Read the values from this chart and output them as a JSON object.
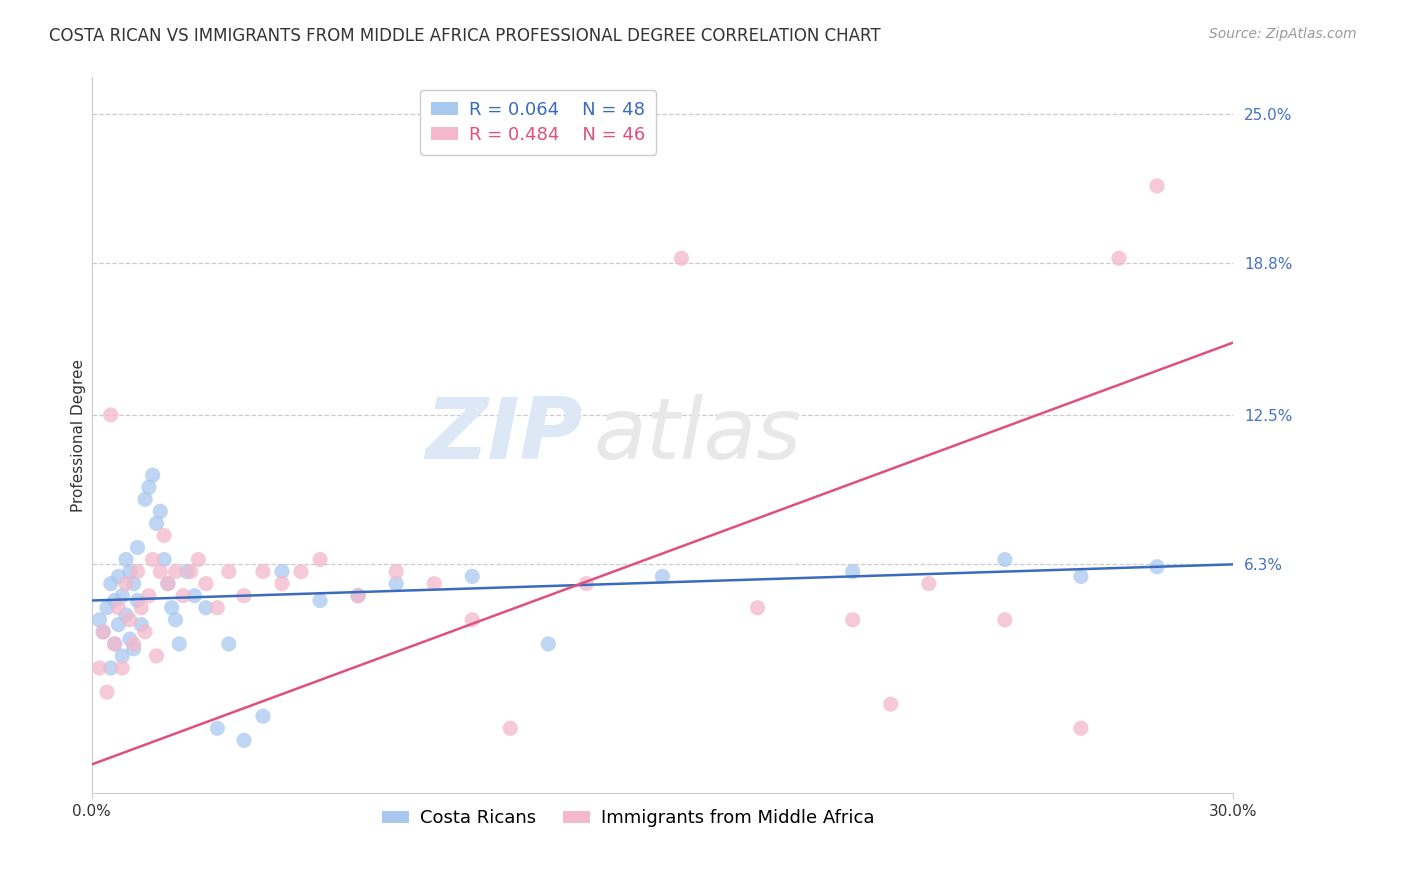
{
  "title": "COSTA RICAN VS IMMIGRANTS FROM MIDDLE AFRICA PROFESSIONAL DEGREE CORRELATION CHART",
  "source": "Source: ZipAtlas.com",
  "ylabel": "Professional Degree",
  "xlim": [
    0.0,
    0.3
  ],
  "ylim": [
    -0.032,
    0.265
  ],
  "ytick_labels": [
    "25.0%",
    "18.8%",
    "12.5%",
    "6.3%"
  ],
  "ytick_values": [
    0.25,
    0.188,
    0.125,
    0.063
  ],
  "xtick_labels": [
    "0.0%",
    "30.0%"
  ],
  "xtick_values": [
    0.0,
    0.3
  ],
  "background_color": "#ffffff",
  "watermark_line1": "ZIP",
  "watermark_line2": "atlas",
  "series": [
    {
      "name": "Costa Ricans",
      "R": 0.064,
      "N": 48,
      "color": "#a8c8f0",
      "trendline_color": "#3a6bbf",
      "x": [
        0.002,
        0.003,
        0.004,
        0.005,
        0.005,
        0.006,
        0.006,
        0.007,
        0.007,
        0.008,
        0.008,
        0.009,
        0.009,
        0.01,
        0.01,
        0.011,
        0.011,
        0.012,
        0.012,
        0.013,
        0.014,
        0.015,
        0.016,
        0.017,
        0.018,
        0.019,
        0.02,
        0.021,
        0.022,
        0.023,
        0.025,
        0.027,
        0.03,
        0.033,
        0.036,
        0.04,
        0.045,
        0.05,
        0.06,
        0.07,
        0.08,
        0.1,
        0.12,
        0.15,
        0.2,
        0.24,
        0.26,
        0.28
      ],
      "y": [
        0.04,
        0.035,
        0.045,
        0.02,
        0.055,
        0.03,
        0.048,
        0.038,
        0.058,
        0.025,
        0.05,
        0.042,
        0.065,
        0.032,
        0.06,
        0.028,
        0.055,
        0.048,
        0.07,
        0.038,
        0.09,
        0.095,
        0.1,
        0.08,
        0.085,
        0.065,
        0.055,
        0.045,
        0.04,
        0.03,
        0.06,
        0.05,
        0.045,
        -0.005,
        0.03,
        -0.01,
        0.0,
        0.06,
        0.048,
        0.05,
        0.055,
        0.058,
        0.03,
        0.058,
        0.06,
        0.065,
        0.058,
        0.062
      ]
    },
    {
      "name": "Immigrants from Middle Africa",
      "R": 0.484,
      "N": 46,
      "color": "#f4b8cc",
      "trendline_color": "#e0507a",
      "x": [
        0.002,
        0.003,
        0.004,
        0.005,
        0.006,
        0.007,
        0.008,
        0.009,
        0.01,
        0.011,
        0.012,
        0.013,
        0.014,
        0.015,
        0.016,
        0.017,
        0.018,
        0.019,
        0.02,
        0.022,
        0.024,
        0.026,
        0.028,
        0.03,
        0.033,
        0.036,
        0.04,
        0.045,
        0.05,
        0.055,
        0.06,
        0.07,
        0.08,
        0.09,
        0.1,
        0.11,
        0.13,
        0.155,
        0.175,
        0.2,
        0.21,
        0.22,
        0.24,
        0.26,
        0.27,
        0.28
      ],
      "y": [
        0.02,
        0.035,
        0.01,
        0.125,
        0.03,
        0.045,
        0.02,
        0.055,
        0.04,
        0.03,
        0.06,
        0.045,
        0.035,
        0.05,
        0.065,
        0.025,
        0.06,
        0.075,
        0.055,
        0.06,
        0.05,
        0.06,
        0.065,
        0.055,
        0.045,
        0.06,
        0.05,
        0.06,
        0.055,
        0.06,
        0.065,
        0.05,
        0.06,
        0.055,
        0.04,
        -0.005,
        0.055,
        0.19,
        0.045,
        0.04,
        0.005,
        0.055,
        0.04,
        -0.005,
        0.19,
        0.22
      ]
    }
  ],
  "legend_box_color": "#ffffff",
  "legend_border_color": "#cccccc",
  "title_fontsize": 12,
  "axis_label_fontsize": 11,
  "tick_fontsize": 11,
  "legend_fontsize": 13,
  "source_fontsize": 10,
  "watermark_color": "#dce8f5",
  "grid_color": "#cccccc",
  "grid_style": "--",
  "trendline_blue_x0": 0.0,
  "trendline_blue_y0": 0.048,
  "trendline_blue_x1": 0.3,
  "trendline_blue_y1": 0.063,
  "trendline_pink_x0": 0.0,
  "trendline_pink_y0": -0.02,
  "trendline_pink_x1": 0.3,
  "trendline_pink_y1": 0.155
}
